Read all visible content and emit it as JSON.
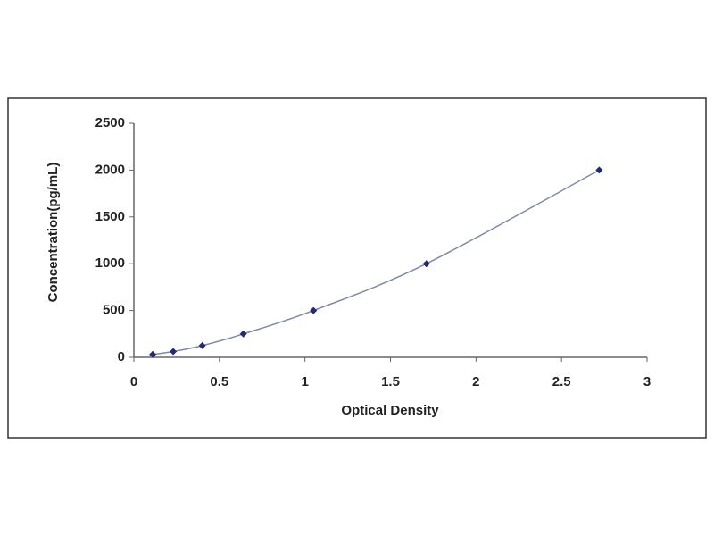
{
  "chart_data": {
    "type": "scatter",
    "x_label": "Optical Density",
    "y_label": "Concentration(pg/mL)",
    "x": [
      0.11,
      0.23,
      0.4,
      0.64,
      1.05,
      1.71,
      2.72
    ],
    "values": [
      31,
      62,
      125,
      250,
      500,
      1000,
      2000
    ],
    "color": "#1f2a7a",
    "line_color": "#7f8aa8",
    "smooth_line": true,
    "xlim": [
      0,
      3
    ],
    "xticks": [
      0,
      0.5,
      1,
      1.5,
      2,
      2.5,
      3
    ],
    "ylim": [
      0,
      2500
    ],
    "yticks": [
      0,
      500,
      1000,
      1500,
      2000,
      2500
    ],
    "grid": false
  }
}
